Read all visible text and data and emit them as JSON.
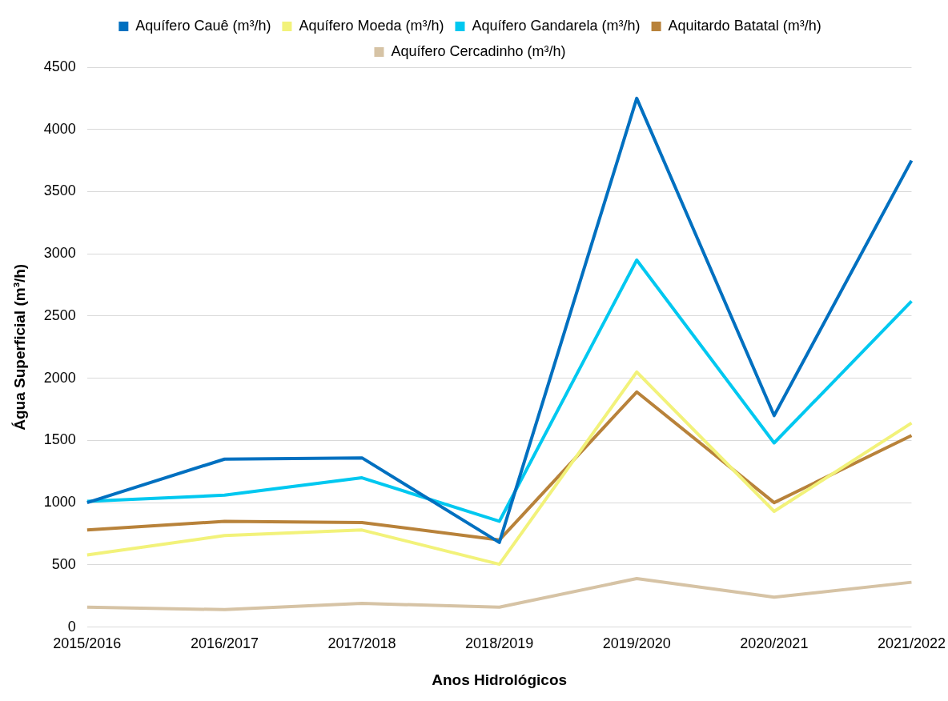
{
  "chart_data": {
    "type": "line",
    "xlabel": "Anos Hidrológicos",
    "ylabel": "Água Superficial (m³/h)",
    "categories": [
      "2015/2016",
      "2016/2017",
      "2017/2018",
      "2018/2019",
      "2019/2020",
      "2020/2021",
      "2021/2022"
    ],
    "series": [
      {
        "name": "Aquífero Cauê (m³/h)",
        "color": "#0070c0",
        "values": [
          1000,
          1350,
          1360,
          680,
          4250,
          1700,
          3750
        ]
      },
      {
        "name": "Aquífero Moeda (m³/h)",
        "color": "#f2f27a",
        "values": [
          580,
          735,
          780,
          505,
          2050,
          930,
          1640
        ]
      },
      {
        "name": "Aquífero Gandarela (m³/h)",
        "color": "#00c8f0",
        "values": [
          1010,
          1060,
          1200,
          850,
          2950,
          1480,
          2620
        ]
      },
      {
        "name": "Aquitardo Batatal (m³/h)",
        "color": "#b8823a",
        "values": [
          780,
          850,
          840,
          700,
          1890,
          1000,
          1540
        ]
      },
      {
        "name": "Aquífero Cercadinho (m³/h)",
        "color": "#d6c3a5",
        "values": [
          160,
          140,
          190,
          160,
          390,
          240,
          360
        ]
      }
    ],
    "ylim": [
      0,
      4500
    ],
    "yticks": [
      0,
      500,
      1000,
      1500,
      2000,
      2500,
      3000,
      3500,
      4000,
      4500
    ],
    "grid": "y",
    "legend": "top",
    "marker": "none",
    "line_style": "solid"
  }
}
